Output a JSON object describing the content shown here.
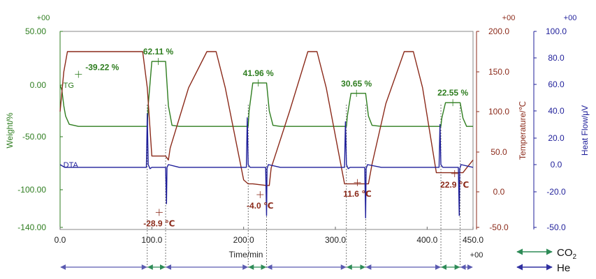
{
  "chart_data": {
    "type": "line",
    "xlabel": "Time/min",
    "x_exponent": "+00",
    "xlim": [
      0,
      450
    ],
    "x_ticks": [
      "0.0",
      "100.0",
      "200.0",
      "300.0",
      "400.0",
      "450.0"
    ],
    "axes": {
      "weight": {
        "label": "Weight/%",
        "exponent": "+00",
        "color": "#2e7d1f",
        "ticks": [
          "50.00",
          "0.00",
          "-50.00",
          "-100.00",
          "-140.00"
        ]
      },
      "temperature": {
        "label": "Temperature/℃",
        "exponent": "+00",
        "color": "#8b2a1a",
        "ticks": [
          "200.0",
          "150.0",
          "100.0",
          "50.0",
          "0.0",
          "-50.0"
        ]
      },
      "heat_flow": {
        "label": "Heat Flow/μV",
        "exponent": "+00",
        "color": "#1f1f9a",
        "ticks": [
          "100.0",
          "80.0",
          "60.0",
          "40.0",
          "20.0",
          "0.0",
          "-20.0",
          "-50.0"
        ]
      }
    },
    "series": [
      {
        "name": "TG",
        "axis": "weight",
        "color": "#2e7d1f",
        "x": [
          0,
          2,
          4,
          6,
          10,
          20,
          40,
          60,
          80,
          95,
          96,
          100,
          115,
          118,
          122,
          130,
          150,
          170,
          190,
          205,
          206,
          210,
          225,
          228,
          232,
          240,
          260,
          280,
          300,
          312,
          313,
          317,
          333,
          336,
          340,
          350,
          370,
          390,
          410,
          415,
          416,
          420,
          436,
          439,
          443,
          450
        ],
        "y": [
          0,
          -5,
          -20,
          -30,
          -38,
          -40,
          -40,
          -40,
          -40,
          -40,
          -20,
          22,
          22,
          -20,
          -39,
          -40,
          -40,
          -40,
          -40,
          -40,
          -25,
          2,
          2,
          -25,
          -39,
          -40,
          -40,
          -40,
          -40,
          -40,
          -30,
          -8,
          -8,
          -30,
          -39,
          -40,
          -40,
          -40,
          -40,
          -40,
          -32,
          -17,
          -17,
          -32,
          -40,
          -40
        ]
      },
      {
        "name": "Temperature",
        "axis": "temperature",
        "color": "#8b2a1a",
        "x": [
          0,
          4,
          8,
          20,
          50,
          90,
          95,
          100,
          115,
          118,
          120,
          140,
          160,
          170,
          180,
          200,
          205,
          210,
          225,
          228,
          230,
          250,
          270,
          280,
          290,
          310,
          315,
          320,
          333,
          336,
          340,
          355,
          375,
          385,
          395,
          410,
          415,
          420,
          436,
          439,
          443,
          450
        ],
        "y": [
          100,
          150,
          175,
          175,
          175,
          175,
          130,
          45,
          45,
          40,
          55,
          130,
          175,
          175,
          130,
          15,
          10,
          10,
          8,
          8,
          30,
          100,
          175,
          175,
          130,
          10,
          10,
          10,
          10,
          10,
          35,
          110,
          175,
          175,
          130,
          24,
          24,
          24,
          24,
          24,
          30,
          40
        ]
      },
      {
        "name": "DTA",
        "axis": "heat_flow",
        "color": "#1f1f9a",
        "x": [
          0,
          5,
          20,
          60,
          94,
          95,
          96,
          98,
          100,
          115,
          116,
          116.5,
          118,
          130,
          180,
          203,
          204,
          205,
          207,
          210,
          224,
          225,
          225.5,
          227,
          240,
          290,
          310,
          311,
          312,
          314,
          316,
          332,
          333,
          333.5,
          335,
          350,
          400,
          413,
          414,
          415,
          417,
          420,
          434,
          435,
          435.5,
          437,
          450
        ],
        "y": [
          0,
          -2,
          -2,
          -2,
          -2,
          38,
          0,
          -3,
          -2,
          -2,
          -30,
          -2,
          0,
          -2,
          -2,
          -2,
          35,
          0,
          -2,
          -2,
          -2,
          -40,
          -3,
          0,
          -2,
          -2,
          -2,
          32,
          0,
          -3,
          -2,
          -2,
          -42,
          -3,
          0,
          -2,
          -2,
          -2,
          30,
          0,
          -2,
          -2,
          -2,
          -40,
          -3,
          0,
          -2
        ]
      }
    ],
    "annotations": [
      {
        "text": "-39.22 %",
        "x": 20,
        "y": 10,
        "axis": "weight",
        "color": "#2e7d1f"
      },
      {
        "text": "62.11 %",
        "x": 107,
        "y": 22,
        "axis": "weight",
        "color": "#2e7d1f"
      },
      {
        "text": "41.96 %",
        "x": 216,
        "y": 2,
        "axis": "weight",
        "color": "#2e7d1f"
      },
      {
        "text": "30.65 %",
        "x": 323,
        "y": -8,
        "axis": "weight",
        "color": "#2e7d1f"
      },
      {
        "text": "22.55 %",
        "x": 428,
        "y": -17,
        "axis": "weight",
        "color": "#2e7d1f"
      },
      {
        "text": "-28.9 ℃",
        "x": 108,
        "y": -28.9,
        "axis": "temperature",
        "color": "#8b2a1a"
      },
      {
        "text": "-4.0 ℃",
        "x": 218,
        "y": -4.0,
        "axis": "temperature",
        "color": "#8b2a1a"
      },
      {
        "text": "11.6 ℃",
        "x": 324,
        "y": 11.6,
        "axis": "temperature",
        "color": "#8b2a1a"
      },
      {
        "text": "22.9 ℃",
        "x": 430,
        "y": 22.9,
        "axis": "temperature",
        "color": "#8b2a1a"
      }
    ],
    "series_labels": [
      {
        "text": "TG",
        "x": 2,
        "y": 0,
        "axis": "weight",
        "color": "#2e7d1f"
      },
      {
        "text": "DTA",
        "x": 2,
        "y": 0,
        "axis": "heat_flow",
        "color": "#1f1f9a"
      }
    ],
    "gas_timeline": [
      {
        "gas": "He",
        "start": 0,
        "end": 95
      },
      {
        "gas": "CO2",
        "start": 95,
        "end": 115
      },
      {
        "gas": "He",
        "start": 115,
        "end": 205
      },
      {
        "gas": "CO2",
        "start": 205,
        "end": 225
      },
      {
        "gas": "He",
        "start": 225,
        "end": 312
      },
      {
        "gas": "CO2",
        "start": 312,
        "end": 333
      },
      {
        "gas": "He",
        "start": 333,
        "end": 415
      },
      {
        "gas": "CO2",
        "start": 415,
        "end": 436
      },
      {
        "gas": "He",
        "start": 436,
        "end": 450
      }
    ],
    "legend": {
      "position": "bottom-right",
      "items": [
        {
          "label": "CO",
          "subscript": "2",
          "color": "#2e8b57"
        },
        {
          "label": "He",
          "subscript": "",
          "color": "#3030a0"
        }
      ]
    },
    "grid": false
  }
}
